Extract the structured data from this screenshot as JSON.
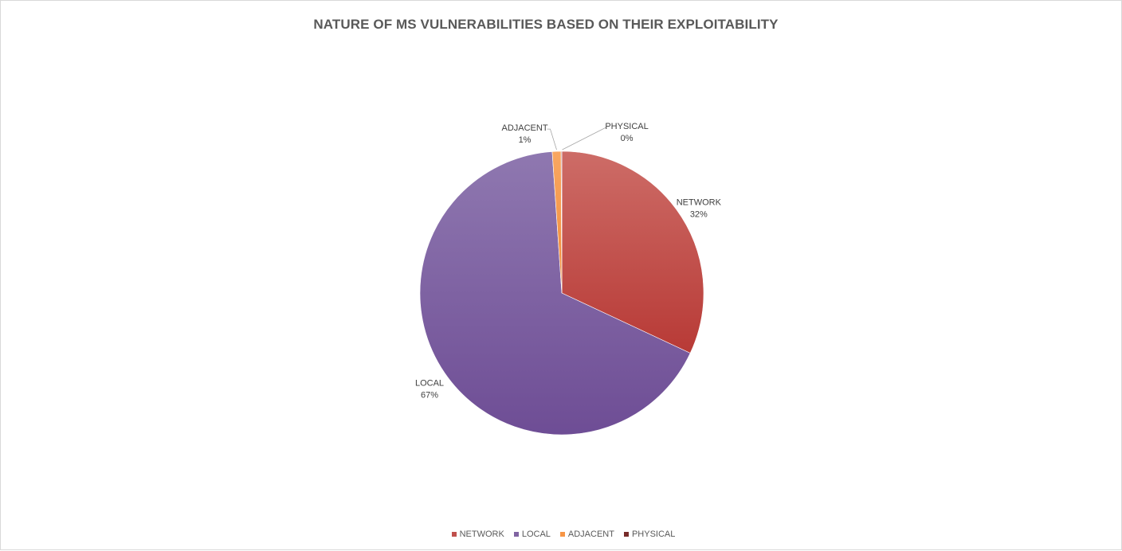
{
  "chart_data": {
    "type": "pie",
    "title": "NATURE OF MS VULNERABILITIES BASED ON THEIR EXPLOITABILITY",
    "legend_position": "bottom",
    "slices": [
      {
        "name": "NETWORK",
        "value": 32,
        "label": "32%",
        "color": "#c0504d"
      },
      {
        "name": "LOCAL",
        "value": 67,
        "label": "67%",
        "color": "#8064a2"
      },
      {
        "name": "ADJACENT",
        "value": 1,
        "label": "1%",
        "color": "#f79646"
      },
      {
        "name": "PHYSICAL",
        "value": 0,
        "label": "0%",
        "color": "#772c2a"
      }
    ]
  }
}
